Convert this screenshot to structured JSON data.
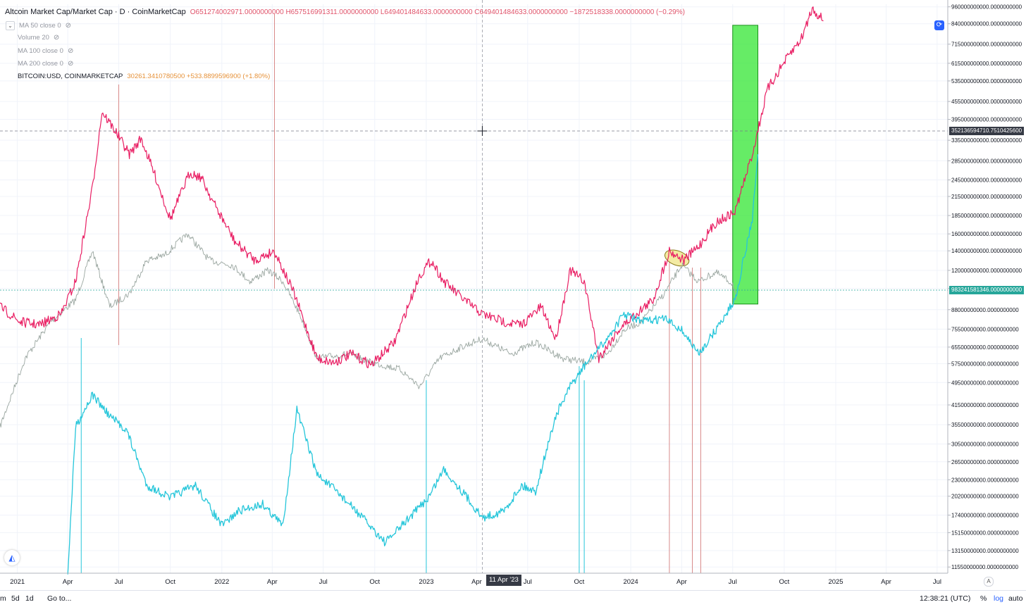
{
  "legend": {
    "title": "Altcoin Market Cap/Market Cap · D · CoinMarketCap",
    "ohlc": "O651274002971.0000000000 H657516991311.0000000000 L649401484633.0000000000 C649401484633.0000000000 −1872518338.0000000000 (−0.29%)",
    "indicators": [
      "MA 50 close 0",
      "Volume 20",
      "MA 100 close 0",
      "MA 200 close 0"
    ],
    "btc_name": "BITCOIN:USD, COINMARKETCAP",
    "btc_value": "30261.3410780500 +533.8899596900 (+1.80%)"
  },
  "icons": {
    "collapse": "chevron-down-icon",
    "eye": "eye-off-icon",
    "sync": "sync-icon",
    "logo": "tradingview-logo-icon"
  },
  "colors": {
    "altcoin": "#e91e63",
    "bitcoin": "#26c6da",
    "marketcap_up": "#7fb8a8",
    "marketcap_down": "#d88a8a",
    "highlight": "#33e633",
    "crosshair_tag": "#363a45",
    "last_price_tag": "#26a69a"
  },
  "crosshair": {
    "price_label": "352136594710.7510425600",
    "date_label": "11 Apr '23"
  },
  "last_price_label": "98324158134​6.0000000000",
  "bottom": {
    "ranges": [
      "m",
      "5d",
      "1d"
    ],
    "goto": "Go to...",
    "time": "12:38:21 (UTC)",
    "percent": "%",
    "log": "log",
    "auto": "auto"
  },
  "chart_data": {
    "type": "line",
    "scale": "log",
    "x_tick_labels": [
      "2021",
      "Apr",
      "Jul",
      "Oct",
      "2022",
      "Apr",
      "Jul",
      "Oct",
      "2023",
      "Apr",
      "Jul",
      "Oct",
      "2024",
      "Apr",
      "Jul",
      "Oct",
      "2025",
      "Apr",
      "Jul"
    ],
    "y_tick_labels": [
      "960000000000.0000000000",
      "840000000000.0000000000",
      "715000000000.0000000000",
      "615000000000.0000000000",
      "535000000000.0000000000",
      "455000000000.0000000000",
      "395000000000.0000000000",
      "335000000000.0000000000",
      "285000000000.0000000000",
      "245000000000.0000000000",
      "215000000000.0000000000",
      "185000000000.0000000000",
      "160000000000.0000000000",
      "140000000000.0000000000",
      "120000000000.0000000000",
      "104000000000.0000000000",
      "88000000000.0000000000",
      "75500000000.0000000000",
      "65500000000.0000000000",
      "57500000000.0000000000",
      "49500000000.0000000000",
      "41500000000.0000000000",
      "35500000000.0000000000",
      "30500000000.0000000000",
      "26500000000.0000000000",
      "23000000000.0000000000",
      "20200000000.0000000000",
      "17400000000.0000000000",
      "15150000000.0000000000",
      "13150000000.0000000000",
      "11550000000.0000000000"
    ],
    "ylim": [
      11000000000,
      980000000000
    ],
    "series": [
      {
        "name": "Altcoin Market Cap/Market Cap",
        "color": "#e91e63",
        "points": [
          [
            "2020-12-01",
            90000000000.0
          ],
          [
            "2021-01-05",
            80000000000.0
          ],
          [
            "2021-02-10",
            78000000000.0
          ],
          [
            "2021-03-20",
            85000000000.0
          ],
          [
            "2021-04-15",
            110000000000.0
          ],
          [
            "2021-05-15",
            230000000000.0
          ],
          [
            "2021-06-01",
            420000000000.0
          ],
          [
            "2021-06-25",
            360000000000.0
          ],
          [
            "2021-07-20",
            300000000000.0
          ],
          [
            "2021-08-10",
            340000000000.0
          ],
          [
            "2021-09-05",
            250000000000.0
          ],
          [
            "2021-10-01",
            180000000000.0
          ],
          [
            "2021-11-05",
            260000000000.0
          ],
          [
            "2021-11-25",
            250000000000.0
          ],
          [
            "2021-12-20",
            200000000000.0
          ],
          [
            "2022-01-25",
            150000000000.0
          ],
          [
            "2022-03-01",
            130000000000.0
          ],
          [
            "2022-04-05",
            140000000000.0
          ],
          [
            "2022-05-10",
            100000000000.0
          ],
          [
            "2022-06-20",
            60000000000.0
          ],
          [
            "2022-07-20",
            58000000000.0
          ],
          [
            "2022-08-20",
            62000000000.0
          ],
          [
            "2022-09-25",
            57000000000.0
          ],
          [
            "2022-11-05",
            68000000000.0
          ],
          [
            "2022-12-20",
            115000000000.0
          ],
          [
            "2023-01-10",
            130000000000.0
          ],
          [
            "2023-02-01",
            110000000000.0
          ],
          [
            "2023-03-10",
            95000000000.0
          ],
          [
            "2023-04-11",
            85000000000.0
          ],
          [
            "2023-05-20",
            80000000000.0
          ],
          [
            "2023-06-20",
            78000000000.0
          ],
          [
            "2023-07-25",
            90000000000.0
          ],
          [
            "2023-08-20",
            70000000000.0
          ],
          [
            "2023-09-15",
            120000000000.0
          ],
          [
            "2023-10-10",
            110000000000.0
          ],
          [
            "2023-11-05",
            60000000000.0
          ],
          [
            "2023-12-10",
            75000000000.0
          ],
          [
            "2024-01-10",
            85000000000.0
          ],
          [
            "2024-02-10",
            95000000000.0
          ],
          [
            "2024-03-10",
            140000000000.0
          ],
          [
            "2024-04-05",
            130000000000.0
          ],
          [
            "2024-05-01",
            145000000000.0
          ],
          [
            "2024-06-01",
            175000000000.0
          ],
          [
            "2024-07-05",
            190000000000.0
          ],
          [
            "2024-08-05",
            300000000000.0
          ],
          [
            "2024-09-01",
            500000000000.0
          ],
          [
            "2024-10-01",
            620000000000.0
          ],
          [
            "2024-11-01",
            750000000000.0
          ],
          [
            "2024-11-20",
            950000000000.0
          ],
          [
            "2024-12-10",
            860000000000.0
          ]
        ]
      },
      {
        "name": "BITCOIN:USD, COINMARKETCAP",
        "color": "#26c6da",
        "points": [
          [
            "2021-04-01",
            11000000000.0
          ],
          [
            "2021-04-15",
            35000000000.0
          ],
          [
            "2021-05-15",
            45000000000.0
          ],
          [
            "2021-06-15",
            38000000000.0
          ],
          [
            "2021-07-15",
            34000000000.0
          ],
          [
            "2021-08-20",
            22000000000.0
          ],
          [
            "2021-10-01",
            20000000000.0
          ],
          [
            "2021-11-15",
            22000000000.0
          ],
          [
            "2022-01-01",
            16000000000.0
          ],
          [
            "2022-02-01",
            18000000000.0
          ],
          [
            "2022-03-15",
            19000000000.0
          ],
          [
            "2022-04-20",
            16000000000.0
          ],
          [
            "2022-05-15",
            40000000000.0
          ],
          [
            "2022-06-20",
            24000000000.0
          ],
          [
            "2022-07-25",
            21000000000.0
          ],
          [
            "2022-09-10",
            17000000000.0
          ],
          [
            "2022-10-20",
            14000000000.0
          ],
          [
            "2022-12-01",
            17000000000.0
          ],
          [
            "2023-01-05",
            20000000000.0
          ],
          [
            "2023-02-01",
            25000000000.0
          ],
          [
            "2023-03-15",
            20000000000.0
          ],
          [
            "2023-04-11",
            17000000000.0
          ],
          [
            "2023-05-20",
            18000000000.0
          ],
          [
            "2023-06-20",
            22000000000.0
          ],
          [
            "2023-07-15",
            21000000000.0
          ],
          [
            "2023-08-20",
            38000000000.0
          ],
          [
            "2023-09-15",
            48000000000.0
          ],
          [
            "2023-10-15",
            58000000000.0
          ],
          [
            "2023-11-20",
            70000000000.0
          ],
          [
            "2023-12-20",
            85000000000.0
          ],
          [
            "2024-01-20",
            80000000000.0
          ],
          [
            "2024-03-01",
            82000000000.0
          ],
          [
            "2024-04-01",
            75000000000.0
          ],
          [
            "2024-05-01",
            62000000000.0
          ],
          [
            "2024-06-01",
            75000000000.0
          ],
          [
            "2024-07-05",
            95000000000.0
          ],
          [
            "2024-08-05",
            180000000000.0
          ],
          [
            "2024-08-15",
            300000000000.0
          ]
        ]
      },
      {
        "name": "Market Cap",
        "color": "#9aa6a0",
        "points": [
          [
            "2020-12-01",
            35000000000.0
          ],
          [
            "2021-01-15",
            60000000000.0
          ],
          [
            "2021-03-01",
            80000000000.0
          ],
          [
            "2021-04-15",
            95000000000.0
          ],
          [
            "2021-05-15",
            140000000000.0
          ],
          [
            "2021-06-15",
            90000000000.0
          ],
          [
            "2021-07-20",
            100000000000.0
          ],
          [
            "2021-08-20",
            130000000000.0
          ],
          [
            "2021-09-20",
            135000000000.0
          ],
          [
            "2021-11-01",
            160000000000.0
          ],
          [
            "2021-12-10",
            130000000000.0
          ],
          [
            "2022-01-20",
            125000000000.0
          ],
          [
            "2022-02-20",
            110000000000.0
          ],
          [
            "2022-03-25",
            120000000000.0
          ],
          [
            "2022-04-20",
            110000000000.0
          ],
          [
            "2022-05-20",
            85000000000.0
          ],
          [
            "2022-06-20",
            60000000000.0
          ],
          [
            "2022-08-15",
            62000000000.0
          ],
          [
            "2022-09-25",
            58000000000.0
          ],
          [
            "2022-11-15",
            55000000000.0
          ],
          [
            "2022-12-20",
            48000000000.0
          ],
          [
            "2023-01-25",
            60000000000.0
          ],
          [
            "2023-03-01",
            65000000000.0
          ],
          [
            "2023-04-11",
            70000000000.0
          ],
          [
            "2023-06-01",
            62000000000.0
          ],
          [
            "2023-07-15",
            68000000000.0
          ],
          [
            "2023-09-01",
            60000000000.0
          ],
          [
            "2023-10-15",
            58000000000.0
          ],
          [
            "2023-11-20",
            62000000000.0
          ],
          [
            "2023-12-20",
            75000000000.0
          ],
          [
            "2024-01-20",
            80000000000.0
          ],
          [
            "2024-03-01",
            100000000000.0
          ],
          [
            "2024-04-01",
            125000000000.0
          ],
          [
            "2024-05-01",
            110000000000.0
          ],
          [
            "2024-06-01",
            118000000000.0
          ],
          [
            "2024-07-01",
            108000000000.0
          ],
          [
            "2024-07-08",
            95000000000.0
          ]
        ]
      }
    ],
    "annotations": [
      {
        "type": "rectangle",
        "color": "#33e633",
        "x": [
          "2024-07-01",
          "2024-08-15"
        ],
        "y": [
          92000000000.0,
          830000000000.0
        ]
      },
      {
        "type": "ellipse",
        "color": "#f0e68c",
        "x": [
          "2024-03-01",
          "2024-04-15"
        ],
        "y": [
          125000000000.0,
          140000000000.0
        ]
      }
    ],
    "grid": true
  }
}
